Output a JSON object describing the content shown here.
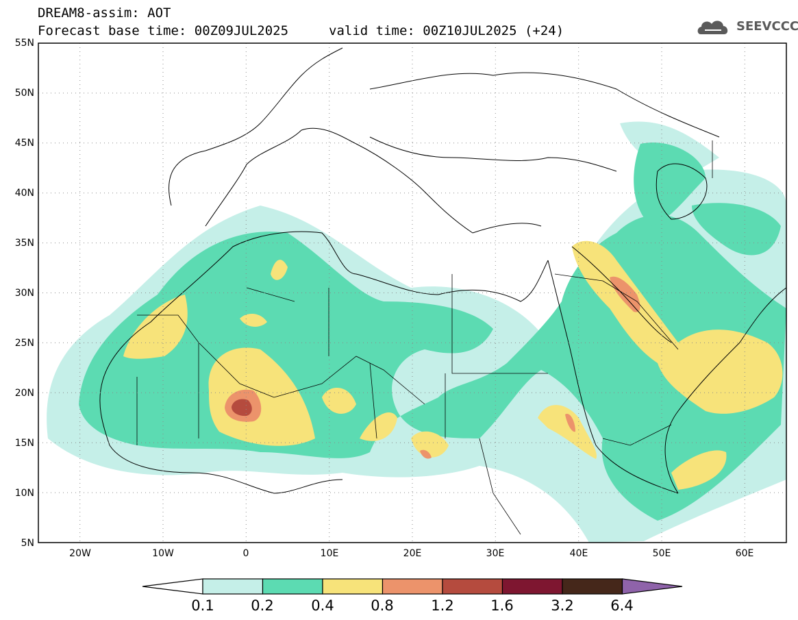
{
  "header": {
    "title": "DREAM8-assim: AOT",
    "base_time": "Forecast base time: 00Z09JUL2025",
    "valid_time": "valid time: 00Z10JUL2025 (+24)"
  },
  "logo": {
    "text": "SEEVCCC",
    "icon": "cloud-icon"
  },
  "map": {
    "projection": "lat-lon",
    "lon_range": [
      -25,
      65
    ],
    "lat_range": [
      5,
      55
    ],
    "lat_labels": [
      "55N",
      "50N",
      "45N",
      "40N",
      "35N",
      "30N",
      "25N",
      "20N",
      "15N",
      "10N",
      "5N"
    ],
    "lon_labels": [
      "20W",
      "10W",
      "0",
      "10E",
      "20E",
      "30E",
      "40E",
      "50E",
      "60E"
    ],
    "grid": "dotted"
  },
  "colorbar": {
    "labels": [
      "0.1",
      "0.2",
      "0.4",
      "0.8",
      "1.2",
      "1.6",
      "3.2",
      "6.4"
    ],
    "colors": [
      "#ffffff",
      "#c5efe8",
      "#5cdbb2",
      "#f7e37a",
      "#ec936b",
      "#b54b3e",
      "#7e1630",
      "#45271a",
      "#8f63aa"
    ]
  }
}
